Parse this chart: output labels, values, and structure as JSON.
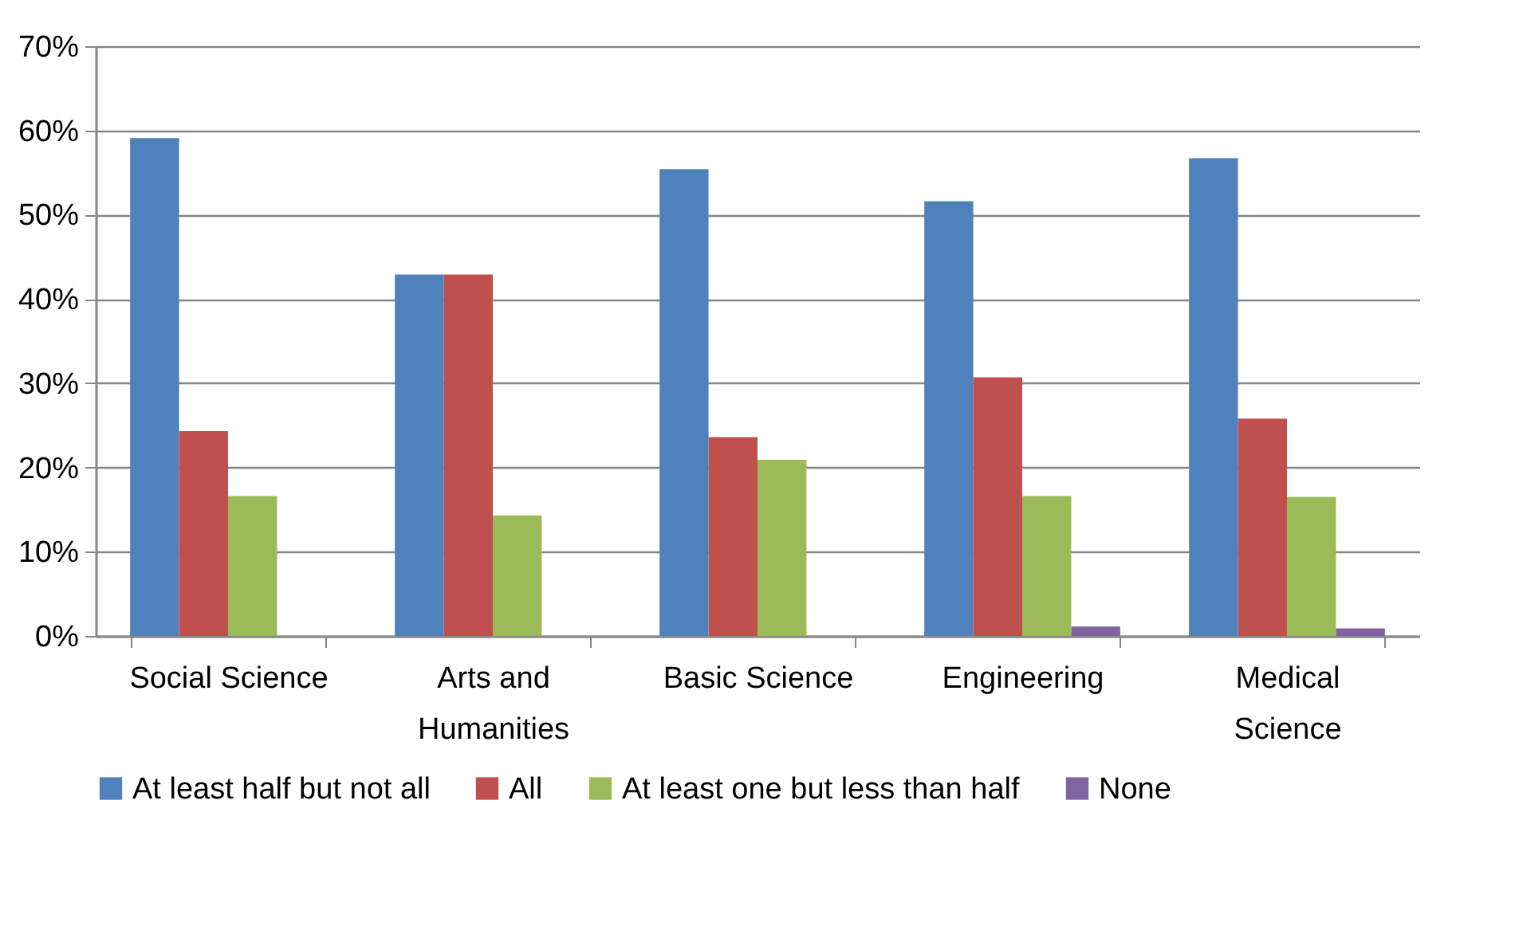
{
  "chart_data": {
    "type": "bar",
    "categories": [
      "Social Science",
      "Arts and Humanities",
      "Basic Science",
      "Engineering",
      "Medical Science"
    ],
    "series": [
      {
        "name": "At least half but not all",
        "color": "#4f81bd",
        "values": [
          59.1,
          42.9,
          55.4,
          51.6,
          56.7
        ]
      },
      {
        "name": "All",
        "color": "#c0504d",
        "values": [
          24.3,
          42.9,
          23.6,
          30.7,
          25.8
        ]
      },
      {
        "name": "At least one but less than half",
        "color": "#9bbb59",
        "values": [
          16.6,
          14.3,
          20.9,
          16.6,
          16.5
        ]
      },
      {
        "name": "None",
        "color": "#8064a2",
        "values": [
          null,
          null,
          null,
          1.1,
          0.9
        ]
      }
    ],
    "ylim": [
      0,
      70
    ],
    "yticks": [
      {
        "value": 0,
        "label": "0%"
      },
      {
        "value": 10,
        "label": "10%"
      },
      {
        "value": 20,
        "label": "20%"
      },
      {
        "value": 30,
        "label": "30%"
      },
      {
        "value": 40,
        "label": "40%"
      },
      {
        "value": 50,
        "label": "50%"
      },
      {
        "value": 60,
        "label": "60%"
      },
      {
        "value": 70,
        "label": "70%"
      }
    ],
    "grid": "y",
    "legend": "bottom"
  }
}
